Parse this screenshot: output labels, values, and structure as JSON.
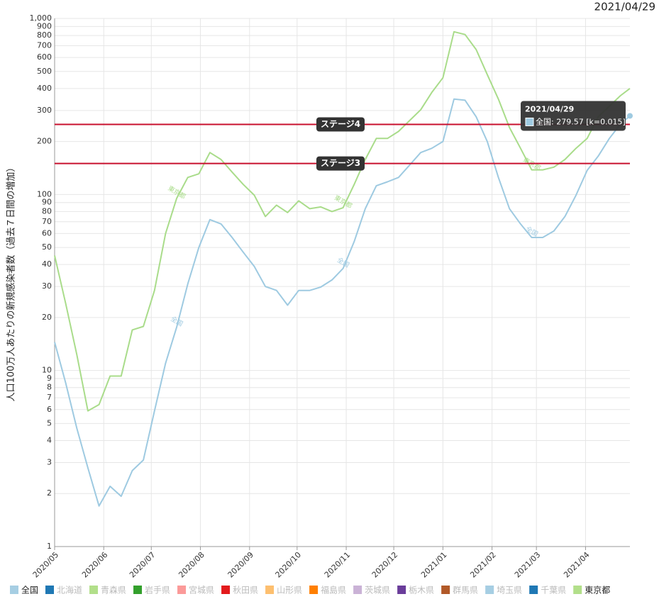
{
  "date": "2021/04/29",
  "chart_data": {
    "type": "line",
    "y_label": "人口100万人あたりの新規感染者数（過去７日間の増加）",
    "log_y": true,
    "grid": true,
    "x": [
      "2020/05/01",
      "2020/05/08",
      "2020/05/15",
      "2020/05/22",
      "2020/05/29",
      "2020/06/05",
      "2020/06/12",
      "2020/06/19",
      "2020/06/26",
      "2020/07/03",
      "2020/07/10",
      "2020/07/17",
      "2020/07/24",
      "2020/07/31",
      "2020/08/07",
      "2020/08/14",
      "2020/08/21",
      "2020/08/28",
      "2020/09/04",
      "2020/09/11",
      "2020/09/18",
      "2020/09/25",
      "2020/10/02",
      "2020/10/09",
      "2020/10/16",
      "2020/10/23",
      "2020/10/30",
      "2020/11/06",
      "2020/11/13",
      "2020/11/20",
      "2020/11/27",
      "2020/12/04",
      "2020/12/11",
      "2020/12/18",
      "2020/12/25",
      "2021/01/01",
      "2021/01/08",
      "2021/01/15",
      "2021/01/22",
      "2021/01/29",
      "2021/02/05",
      "2021/02/12",
      "2021/02/19",
      "2021/02/26",
      "2021/03/05",
      "2021/03/12",
      "2021/03/19",
      "2021/03/26",
      "2021/04/02",
      "2021/04/09",
      "2021/04/16",
      "2021/04/23",
      "2021/04/29"
    ],
    "series": [
      {
        "name": "全国",
        "color": "#9ecae1",
        "values": [
          14.5,
          8.5,
          4.7,
          2.8,
          1.7,
          2.2,
          1.93,
          2.7,
          3.1,
          5.9,
          11,
          17.6,
          31,
          50,
          72,
          68,
          57,
          47,
          39,
          30,
          28.5,
          23.5,
          28.5,
          28.5,
          29.8,
          32.7,
          38,
          54,
          83,
          112,
          118,
          125,
          147,
          173,
          183,
          200,
          348,
          343,
          276,
          200,
          125,
          83,
          68,
          57,
          57,
          62,
          75,
          99,
          137,
          165,
          208,
          251,
          279.57
        ]
      },
      {
        "name": "東京都",
        "color": "#a9dc8a",
        "values": [
          45,
          24,
          12.3,
          5.9,
          6.4,
          9.3,
          9.3,
          17,
          17.8,
          28.5,
          60,
          95,
          125,
          131,
          173,
          158,
          134,
          114,
          99,
          75,
          87,
          79,
          92,
          83,
          85,
          80,
          84,
          114,
          158,
          208,
          208,
          228,
          263,
          303,
          380,
          460,
          840,
          810,
          665,
          480,
          348,
          240,
          183,
          138,
          138,
          143,
          158,
          183,
          208,
          276,
          317,
          364,
          400
        ]
      }
    ],
    "xlim": [
      "2020/05/01",
      "2021/04/29"
    ],
    "xticks": [
      {
        "value": "2020/05/01",
        "label": "2020/05"
      },
      {
        "value": "2020/06/01",
        "label": "2020/06"
      },
      {
        "value": "2020/07/01",
        "label": "2020/07"
      },
      {
        "value": "2020/08/01",
        "label": "2020/08"
      },
      {
        "value": "2020/09/01",
        "label": "2020/09"
      },
      {
        "value": "2020/10/01",
        "label": "2020/10"
      },
      {
        "value": "2020/11/01",
        "label": "2020/11"
      },
      {
        "value": "2020/12/01",
        "label": "2020/12"
      },
      {
        "value": "2021/01/01",
        "label": "2021/01"
      },
      {
        "value": "2021/02/01",
        "label": "2021/02"
      },
      {
        "value": "2021/03/01",
        "label": "2021/03"
      },
      {
        "value": "2021/04/01",
        "label": "2021/04"
      }
    ],
    "ylim": [
      1,
      1000
    ],
    "yticks": [
      1,
      2,
      3,
      4,
      5,
      6,
      7,
      8,
      9,
      10,
      20,
      30,
      40,
      50,
      60,
      70,
      80,
      90,
      100,
      200,
      300,
      400,
      500,
      600,
      700,
      800,
      900,
      {
        "value": 1000,
        "label": "1,000"
      }
    ],
    "thresholds": [
      {
        "label": "ステージ4",
        "value": 250,
        "color": "#c8102e"
      },
      {
        "label": "ステージ3",
        "value": 150,
        "color": "#c8102e"
      }
    ],
    "tooltip": {
      "title": "2021/04/29",
      "text": "全国: 279.57 [k=0.015]"
    },
    "legend": [
      {
        "name": "全国",
        "color": "#a6cee3",
        "active": true
      },
      {
        "name": "北海道",
        "color": "#1f78b4",
        "active": false
      },
      {
        "name": "青森県",
        "color": "#b2df8a",
        "active": false
      },
      {
        "name": "岩手県",
        "color": "#33a02c",
        "active": false
      },
      {
        "name": "宮城県",
        "color": "#fb9a99",
        "active": false
      },
      {
        "name": "秋田県",
        "color": "#e31a1c",
        "active": false
      },
      {
        "name": "山形県",
        "color": "#fdbf6f",
        "active": false
      },
      {
        "name": "福島県",
        "color": "#ff7f00",
        "active": false
      },
      {
        "name": "茨城県",
        "color": "#cab2d6",
        "active": false
      },
      {
        "name": "栃木県",
        "color": "#6a3d9a",
        "active": false
      },
      {
        "name": "群馬県",
        "color": "#b15928",
        "active": false
      },
      {
        "name": "埼玉県",
        "color": "#a6cee3",
        "active": false
      },
      {
        "name": "千葉県",
        "color": "#1f78b4",
        "active": false
      },
      {
        "name": "東京都",
        "color": "#b2df8a",
        "active": true
      }
    ]
  }
}
